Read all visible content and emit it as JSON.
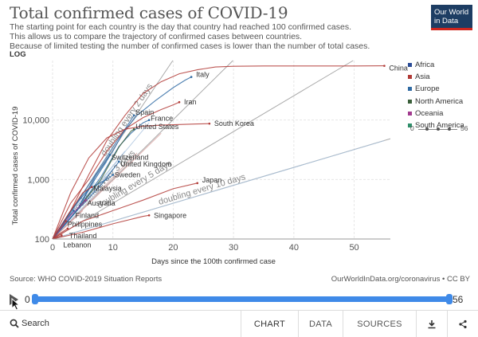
{
  "header": {
    "title": "Total confirmed cases of COVID-19",
    "subtitle_lines": [
      "The starting point for each country is the day that country had reached 100 confirmed cases.",
      "This allows us to compare the trajectory of confirmed cases between countries.",
      "Because of limited testing the number of confirmed cases is lower than the number of total cases."
    ],
    "logo_lines": [
      "Our World",
      "in Data"
    ],
    "scale_label": "LOG"
  },
  "legend": {
    "items": [
      {
        "label": "Africa",
        "color": "#2a4b96"
      },
      {
        "label": "Asia",
        "color": "#b13a36"
      },
      {
        "label": "Europe",
        "color": "#2f6aa3"
      },
      {
        "label": "North America",
        "color": "#3a5f3a"
      },
      {
        "label": "Oceania",
        "color": "#a23b8f"
      },
      {
        "label": "South America",
        "color": "#2f8f6a"
      }
    ],
    "slider_min": "0",
    "slider_max": "56"
  },
  "chart_data": {
    "type": "line",
    "title": "Total confirmed cases of COVID-19",
    "xlabel": "Days since the 100th confirmed case",
    "ylabel": "Total confirmed cases of COVID-19",
    "xlim": [
      0,
      56
    ],
    "ylim": [
      100,
      100000
    ],
    "yscale": "log",
    "xticks": [
      0,
      10,
      20,
      30,
      40,
      50
    ],
    "xtick_labels": [
      "0",
      "10",
      "20",
      "30",
      "40",
      "50"
    ],
    "yticks": [
      100,
      1000,
      10000
    ],
    "ytick_labels": [
      "100",
      "1,000",
      "10,000"
    ],
    "reference_lines": [
      {
        "label": "doubling every 2 days",
        "doubling_days": 2
      },
      {
        "label": "doubling every 3 days",
        "doubling_days": 3
      },
      {
        "label": "doubling every 5 days",
        "doubling_days": 5
      },
      {
        "label": "doubling every 10 days",
        "doubling_days": 10
      }
    ],
    "series": [
      {
        "name": "China",
        "color": "#b13a36",
        "points": [
          [
            0,
            100
          ],
          [
            3,
            300
          ],
          [
            6,
            1200
          ],
          [
            9,
            4500
          ],
          [
            12,
            12000
          ],
          [
            15,
            28000
          ],
          [
            18,
            44000
          ],
          [
            21,
            60000
          ],
          [
            24,
            70000
          ],
          [
            27,
            78000
          ],
          [
            30,
            80000
          ],
          [
            35,
            81000
          ],
          [
            40,
            81000
          ],
          [
            45,
            81000
          ],
          [
            50,
            81000
          ],
          [
            55,
            81500
          ]
        ]
      },
      {
        "name": "Italy",
        "color": "#2f6aa3",
        "points": [
          [
            0,
            100
          ],
          [
            4,
            400
          ],
          [
            8,
            1700
          ],
          [
            11,
            5000
          ],
          [
            14,
            12000
          ],
          [
            17,
            21000
          ],
          [
            20,
            35000
          ],
          [
            22,
            47000
          ],
          [
            23,
            53000
          ]
        ]
      },
      {
        "name": "Iran",
        "color": "#b13a36",
        "points": [
          [
            0,
            100
          ],
          [
            3,
            400
          ],
          [
            6,
            1000
          ],
          [
            9,
            3000
          ],
          [
            12,
            7000
          ],
          [
            15,
            11000
          ],
          [
            18,
            15000
          ],
          [
            20,
            18000
          ],
          [
            21,
            20000
          ]
        ]
      },
      {
        "name": "Spain",
        "color": "#2f6aa3",
        "points": [
          [
            0,
            100
          ],
          [
            4,
            300
          ],
          [
            7,
            1000
          ],
          [
            10,
            3000
          ],
          [
            12,
            7000
          ],
          [
            13.5,
            12000
          ]
        ]
      },
      {
        "name": "France",
        "color": "#2f6aa3",
        "points": [
          [
            0,
            100
          ],
          [
            4,
            300
          ],
          [
            8,
            1100
          ],
          [
            11,
            3600
          ],
          [
            13,
            6000
          ],
          [
            15,
            9000
          ],
          [
            16,
            10000
          ]
        ]
      },
      {
        "name": "South Korea",
        "color": "#b13a36",
        "points": [
          [
            0,
            100
          ],
          [
            3,
            600
          ],
          [
            6,
            2300
          ],
          [
            9,
            5000
          ],
          [
            12,
            7000
          ],
          [
            15,
            7900
          ],
          [
            18,
            8200
          ],
          [
            21,
            8400
          ],
          [
            24,
            8600
          ],
          [
            26,
            8700
          ]
        ]
      },
      {
        "name": "United States",
        "color": "#3a5f3a",
        "points": [
          [
            0,
            100
          ],
          [
            4,
            300
          ],
          [
            8,
            1000
          ],
          [
            11,
            3500
          ],
          [
            13,
            6500
          ],
          [
            13.5,
            7000
          ]
        ]
      },
      {
        "name": "Switzerland",
        "color": "#2f6aa3",
        "points": [
          [
            0,
            100
          ],
          [
            4,
            300
          ],
          [
            7,
            1100
          ],
          [
            9.5,
            2600
          ]
        ]
      },
      {
        "name": "United Kingdom",
        "color": "#2f6aa3",
        "points": [
          [
            0,
            100
          ],
          [
            4,
            300
          ],
          [
            8,
            800
          ],
          [
            11,
            2000
          ]
        ]
      },
      {
        "name": "Sweden",
        "color": "#2f6aa3",
        "points": [
          [
            0,
            100
          ],
          [
            3,
            300
          ],
          [
            6,
            700
          ],
          [
            9,
            1000
          ],
          [
            10,
            1200
          ]
        ]
      },
      {
        "name": "Japan",
        "color": "#b13a36",
        "points": [
          [
            0,
            100
          ],
          [
            5,
            200
          ],
          [
            10,
            300
          ],
          [
            15,
            450
          ],
          [
            20,
            700
          ],
          [
            24,
            870
          ]
        ]
      },
      {
        "name": "Malaysia",
        "color": "#b13a36",
        "points": [
          [
            0,
            100
          ],
          [
            3,
            300
          ],
          [
            5,
            600
          ],
          [
            6.5,
            750
          ]
        ]
      },
      {
        "name": "Australia",
        "color": "#a23b8f",
        "points": [
          [
            0,
            100
          ],
          [
            3,
            250
          ],
          [
            5.5,
            450
          ]
        ]
      },
      {
        "name": "Finland",
        "color": "#2f6aa3",
        "points": [
          [
            0,
            100
          ],
          [
            2,
            200
          ],
          [
            3.5,
            300
          ]
        ]
      },
      {
        "name": "Philippines",
        "color": "#b13a36",
        "points": [
          [
            0,
            100
          ],
          [
            1,
            140
          ],
          [
            2.2,
            200
          ]
        ]
      },
      {
        "name": "Thailand",
        "color": "#b13a36",
        "points": [
          [
            0,
            100
          ],
          [
            1,
            120
          ],
          [
            2.5,
            150
          ]
        ]
      },
      {
        "name": "Singapore",
        "color": "#b13a36",
        "points": [
          [
            0,
            100
          ],
          [
            5,
            130
          ],
          [
            10,
            180
          ],
          [
            15,
            240
          ],
          [
            16,
            250
          ]
        ]
      },
      {
        "name": "Lebanon",
        "color": "#b13a36",
        "points": [
          [
            0,
            100
          ],
          [
            1.5,
            115
          ]
        ]
      }
    ]
  },
  "footer": {
    "source": "Source: WHO COVID-2019 Situation Reports",
    "url": "OurWorldInData.org/coronavirus • CC BY"
  },
  "timeline": {
    "start": "0",
    "end": "56"
  },
  "toolbar": {
    "search": "Search",
    "tabs": [
      "CHART",
      "DATA",
      "SOURCES"
    ]
  },
  "colors": {
    "accent": "#3f8ae8",
    "logo_bg": "#1d3d63",
    "logo_stripe": "#ce261e"
  }
}
